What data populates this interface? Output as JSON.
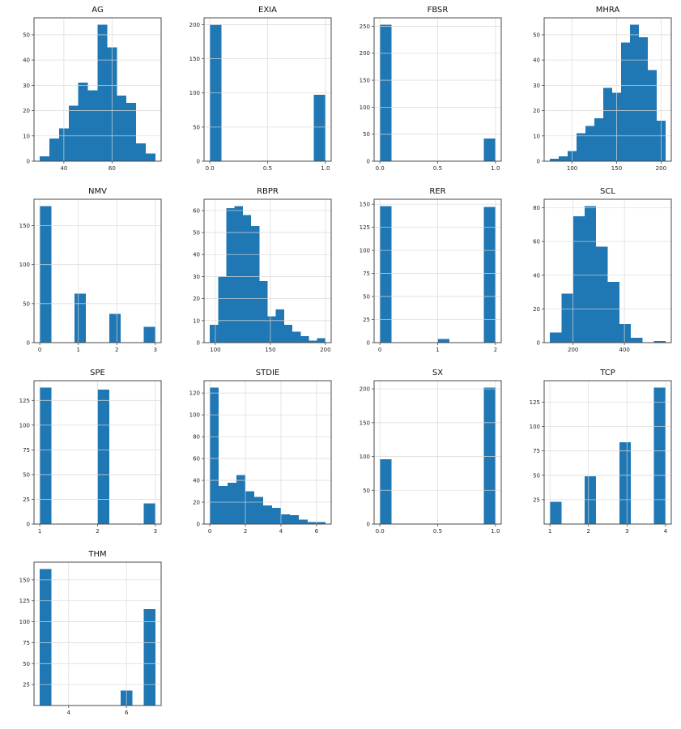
{
  "style": {
    "bar_color": "#1f77b4",
    "grid_color": "#d9d9d9",
    "spine_color": "#4a4a4a",
    "text_color": "#262626",
    "background": "#ffffff"
  },
  "chart_data": [
    {
      "type": "histogram",
      "title": "AG",
      "bin_start": 30,
      "bin_end": 78,
      "counts": [
        2,
        9,
        13,
        22,
        31,
        28,
        54,
        45,
        26,
        23,
        7,
        3
      ],
      "xticks": [
        [
          40,
          "40"
        ],
        [
          60,
          "60"
        ]
      ],
      "yticks": [
        [
          0,
          "0"
        ],
        [
          10,
          "10"
        ],
        [
          20,
          "20"
        ],
        [
          30,
          "30"
        ],
        [
          40,
          "40"
        ],
        [
          50,
          "50"
        ]
      ]
    },
    {
      "type": "histogram",
      "title": "EXIA",
      "bin_start": 0,
      "bin_end": 1,
      "counts": [
        200,
        0,
        0,
        0,
        0,
        0,
        0,
        0,
        0,
        97
      ],
      "xticks": [
        [
          0,
          "0.0"
        ],
        [
          0.5,
          "0.5"
        ],
        [
          1,
          "1.0"
        ]
      ],
      "yticks": [
        [
          0,
          "0"
        ],
        [
          50,
          "50"
        ],
        [
          100,
          "100"
        ],
        [
          150,
          "150"
        ],
        [
          200,
          "200"
        ]
      ]
    },
    {
      "type": "histogram",
      "title": "FBSR",
      "bin_start": 0,
      "bin_end": 1,
      "counts": [
        253,
        0,
        0,
        0,
        0,
        0,
        0,
        0,
        0,
        42
      ],
      "xticks": [
        [
          0,
          "0.0"
        ],
        [
          0.5,
          "0.5"
        ],
        [
          1,
          "1.0"
        ]
      ],
      "yticks": [
        [
          0,
          "0"
        ],
        [
          50,
          "50"
        ],
        [
          100,
          "100"
        ],
        [
          150,
          "150"
        ],
        [
          200,
          "200"
        ],
        [
          250,
          "250"
        ]
      ]
    },
    {
      "type": "histogram",
      "title": "MHRA",
      "bin_start": 75,
      "bin_end": 205,
      "counts": [
        1,
        2,
        4,
        11,
        14,
        17,
        29,
        27,
        47,
        54,
        49,
        36,
        16
      ],
      "xticks": [
        [
          100,
          "100"
        ],
        [
          150,
          "150"
        ],
        [
          200,
          "200"
        ]
      ],
      "yticks": [
        [
          0,
          "0"
        ],
        [
          10,
          "10"
        ],
        [
          20,
          "20"
        ],
        [
          30,
          "30"
        ],
        [
          40,
          "40"
        ],
        [
          50,
          "50"
        ]
      ]
    },
    {
      "type": "histogram",
      "title": "NMV",
      "bin_start": 0,
      "bin_end": 3,
      "counts": [
        175,
        0,
        0,
        63,
        0,
        0,
        37,
        0,
        0,
        20
      ],
      "xticks": [
        [
          0,
          "0"
        ],
        [
          1,
          "1"
        ],
        [
          2,
          "2"
        ],
        [
          3,
          "3"
        ]
      ],
      "yticks": [
        [
          0,
          "0"
        ],
        [
          50,
          "50"
        ],
        [
          100,
          "100"
        ],
        [
          150,
          "150"
        ]
      ]
    },
    {
      "type": "histogram",
      "title": "RBPR",
      "bin_start": 95,
      "bin_end": 200,
      "counts": [
        8,
        30,
        61,
        62,
        58,
        53,
        28,
        12,
        15,
        8,
        5,
        3,
        1,
        2
      ],
      "xticks": [
        [
          100,
          "100"
        ],
        [
          150,
          "150"
        ],
        [
          200,
          "200"
        ]
      ],
      "yticks": [
        [
          0,
          "0"
        ],
        [
          10,
          "10"
        ],
        [
          20,
          "20"
        ],
        [
          30,
          "30"
        ],
        [
          40,
          "40"
        ],
        [
          50,
          "50"
        ],
        [
          60,
          "60"
        ]
      ]
    },
    {
      "type": "histogram",
      "title": "RER",
      "bin_start": 0,
      "bin_end": 2,
      "counts": [
        148,
        0,
        0,
        0,
        0,
        4,
        0,
        0,
        0,
        147
      ],
      "xticks": [
        [
          0,
          "0"
        ],
        [
          1,
          "1"
        ],
        [
          2,
          "2"
        ]
      ],
      "yticks": [
        [
          0,
          "0"
        ],
        [
          25,
          "25"
        ],
        [
          50,
          "50"
        ],
        [
          75,
          "75"
        ],
        [
          100,
          "100"
        ],
        [
          125,
          "125"
        ],
        [
          150,
          "150"
        ]
      ]
    },
    {
      "type": "histogram",
      "title": "SCL",
      "bin_start": 110,
      "bin_end": 560,
      "counts": [
        6,
        29,
        75,
        81,
        57,
        36,
        11,
        3,
        0,
        1
      ],
      "xticks": [
        [
          200,
          "200"
        ],
        [
          400,
          "400"
        ]
      ],
      "yticks": [
        [
          0,
          "0"
        ],
        [
          20,
          "20"
        ],
        [
          40,
          "40"
        ],
        [
          60,
          "60"
        ],
        [
          80,
          "80"
        ]
      ]
    },
    {
      "type": "histogram",
      "title": "SPE",
      "bin_start": 1,
      "bin_end": 3,
      "counts": [
        138,
        0,
        0,
        0,
        0,
        136,
        0,
        0,
        0,
        21
      ],
      "xticks": [
        [
          1,
          "1"
        ],
        [
          2,
          "2"
        ],
        [
          3,
          "3"
        ]
      ],
      "yticks": [
        [
          0,
          "0"
        ],
        [
          25,
          "25"
        ],
        [
          50,
          "50"
        ],
        [
          75,
          "75"
        ],
        [
          100,
          "100"
        ],
        [
          125,
          "125"
        ]
      ]
    },
    {
      "type": "histogram",
      "title": "STDIE",
      "bin_start": 0,
      "bin_end": 6.5,
      "counts": [
        125,
        35,
        38,
        45,
        30,
        25,
        17,
        15,
        9,
        8,
        4,
        2,
        2
      ],
      "xticks": [
        [
          0,
          "0"
        ],
        [
          2,
          "2"
        ],
        [
          4,
          "4"
        ],
        [
          6,
          "6"
        ]
      ],
      "yticks": [
        [
          0,
          "0"
        ],
        [
          20,
          "20"
        ],
        [
          40,
          "40"
        ],
        [
          60,
          "60"
        ],
        [
          80,
          "80"
        ],
        [
          100,
          "100"
        ],
        [
          120,
          "120"
        ]
      ]
    },
    {
      "type": "histogram",
      "title": "SX",
      "bin_start": 0,
      "bin_end": 1,
      "counts": [
        96,
        0,
        0,
        0,
        0,
        0,
        0,
        0,
        0,
        202
      ],
      "xticks": [
        [
          0,
          "0.0"
        ],
        [
          0.5,
          "0.5"
        ],
        [
          1,
          "1.0"
        ]
      ],
      "yticks": [
        [
          0,
          "0"
        ],
        [
          50,
          "50"
        ],
        [
          100,
          "100"
        ],
        [
          150,
          "150"
        ],
        [
          200,
          "200"
        ]
      ]
    },
    {
      "type": "histogram",
      "title": "TCP",
      "bin_start": 1,
      "bin_end": 4,
      "counts": [
        23,
        0,
        0,
        49,
        0,
        0,
        84,
        0,
        0,
        140
      ],
      "xticks": [
        [
          1,
          "1"
        ],
        [
          2,
          "2"
        ],
        [
          3,
          "3"
        ],
        [
          4,
          "4"
        ]
      ],
      "yticks": [
        [
          25,
          "25"
        ],
        [
          50,
          "50"
        ],
        [
          75,
          "75"
        ],
        [
          100,
          "100"
        ],
        [
          125,
          "125"
        ]
      ]
    },
    {
      "type": "histogram",
      "title": "THM",
      "bin_start": 3,
      "bin_end": 7,
      "counts": [
        163,
        0,
        0,
        0,
        0,
        0,
        0,
        18,
        0,
        115
      ],
      "xticks": [
        [
          4,
          "4"
        ],
        [
          6,
          "6"
        ]
      ],
      "yticks": [
        [
          25,
          "25"
        ],
        [
          50,
          "50"
        ],
        [
          75,
          "75"
        ],
        [
          100,
          "100"
        ],
        [
          125,
          "125"
        ],
        [
          150,
          "150"
        ]
      ]
    }
  ]
}
